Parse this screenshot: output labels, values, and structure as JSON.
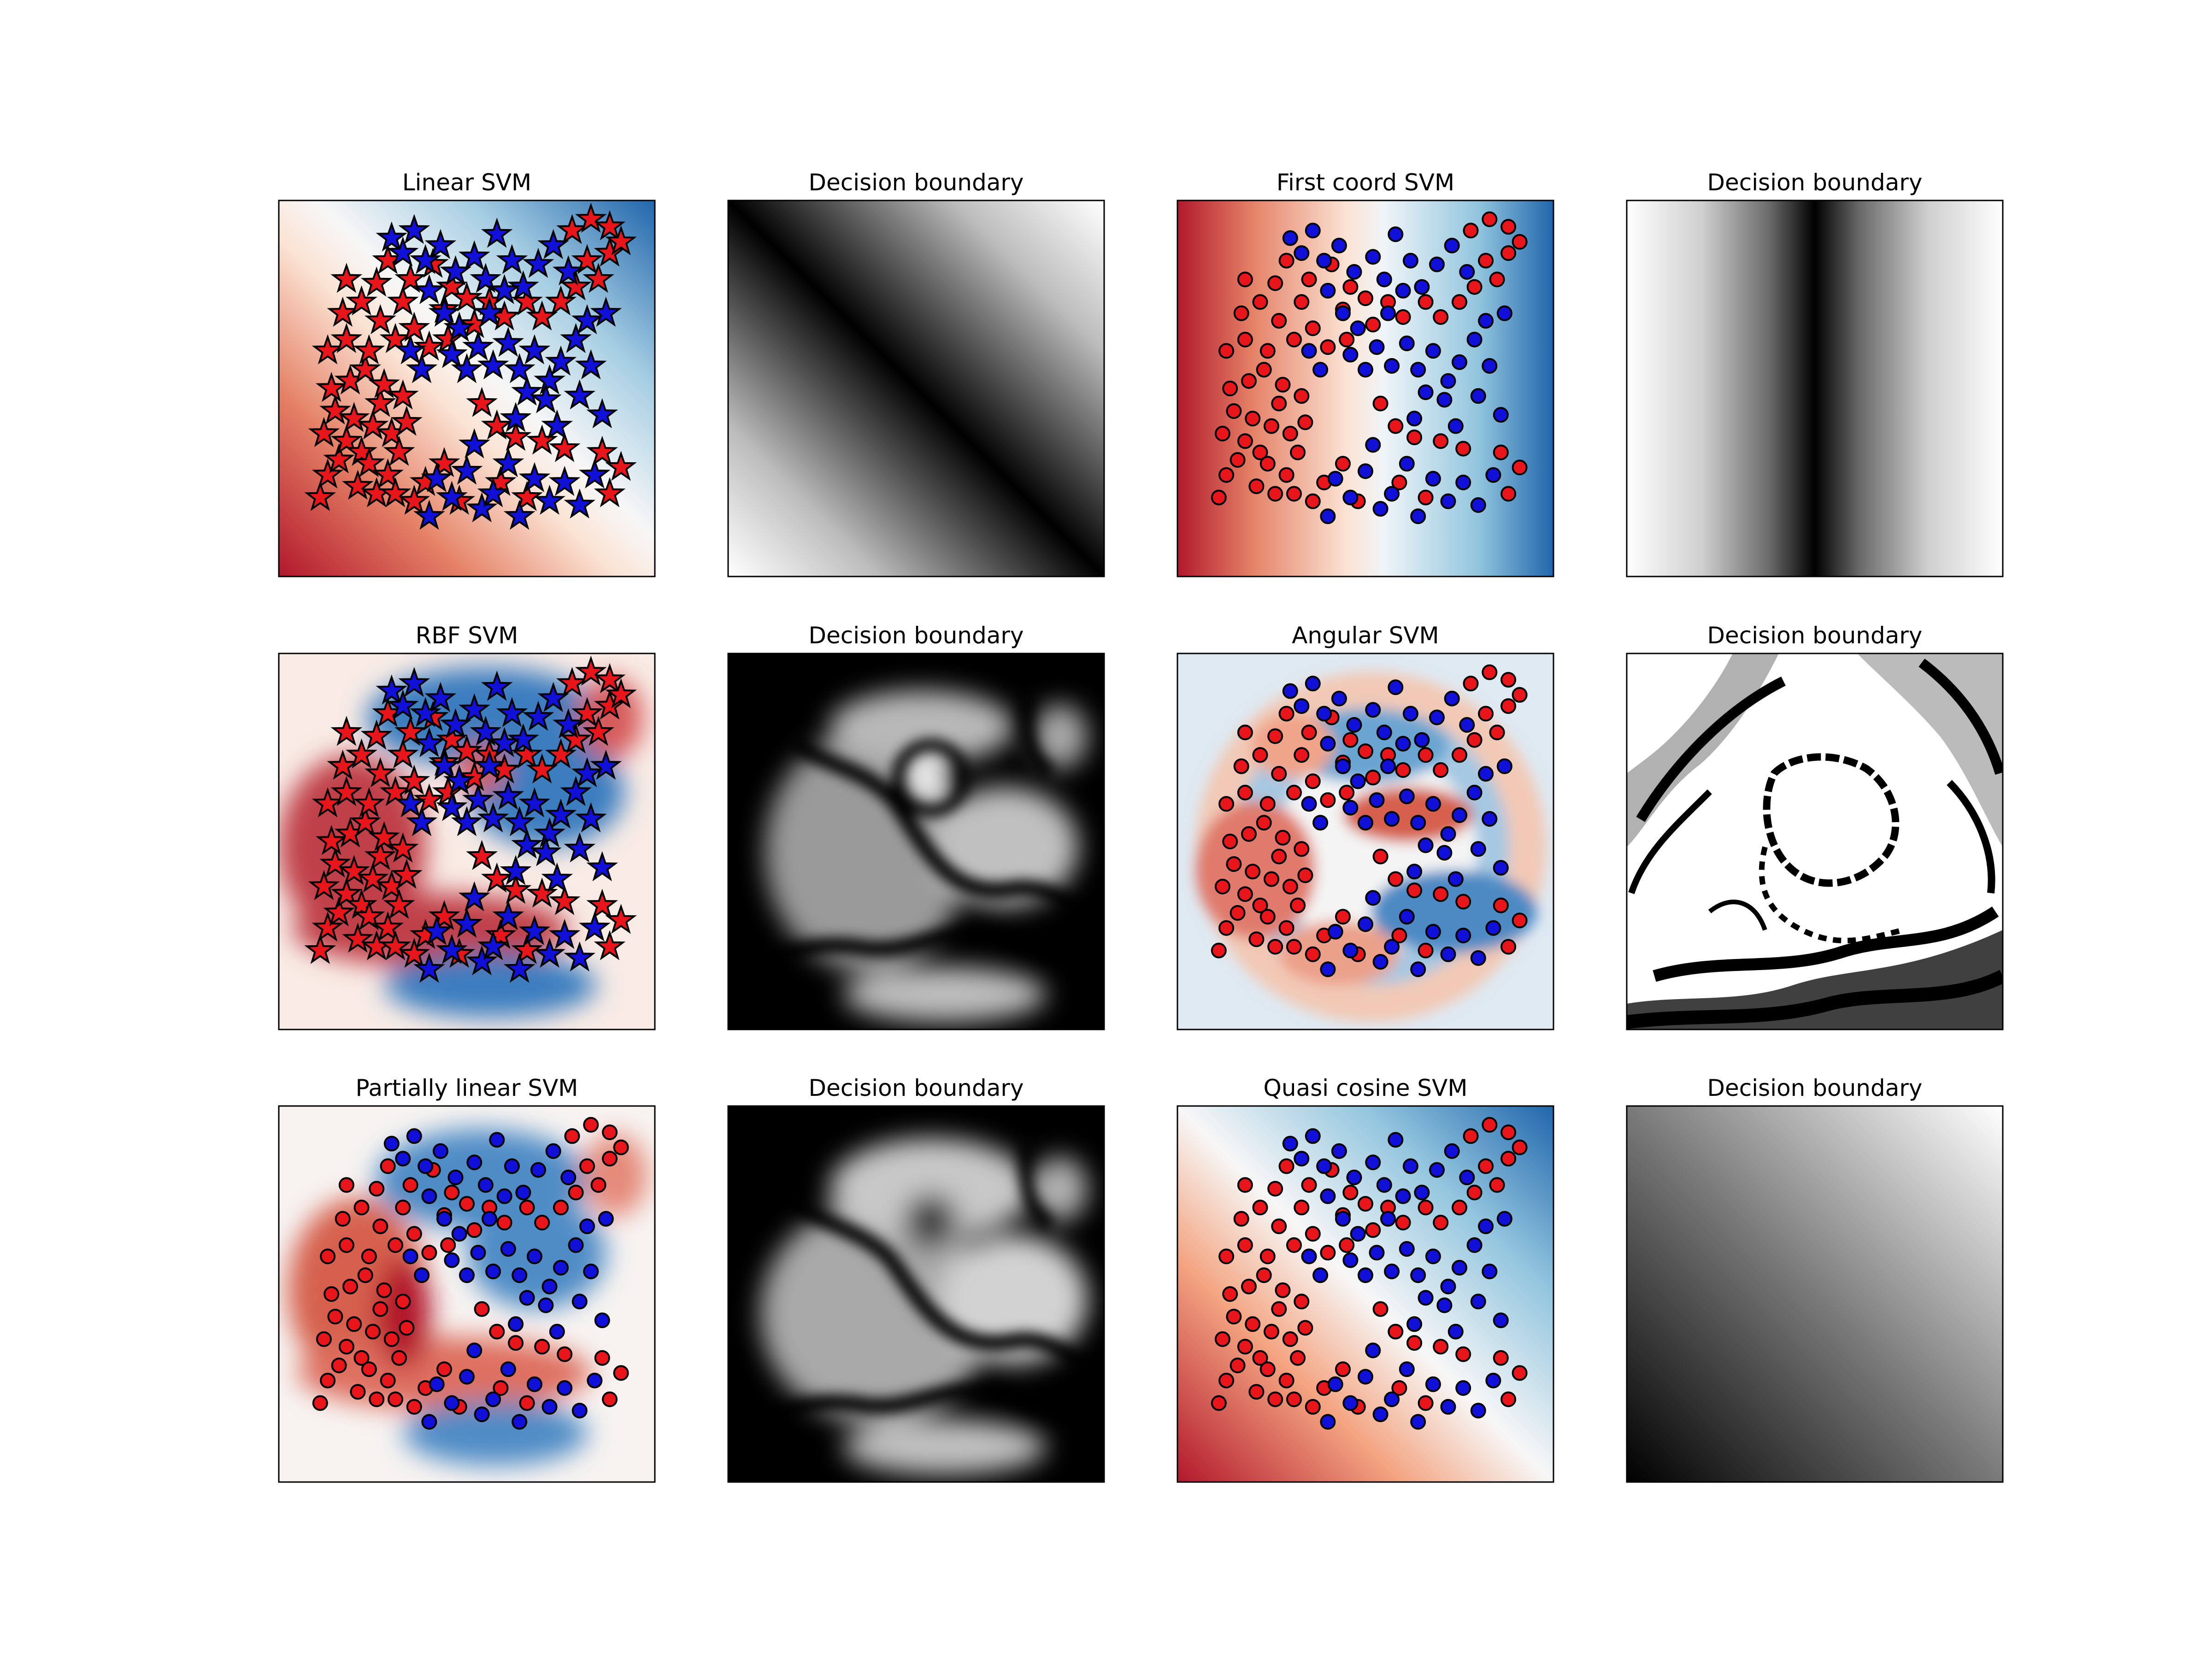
{
  "figure": {
    "background": "#ffffff"
  },
  "colors": {
    "red_class": "#e8161a",
    "blue_class": "#1010d8",
    "marker_edge": "#000000",
    "cmap_diverging": "RdBu",
    "cmap_gray": "gray"
  },
  "chart_data": [
    {
      "type": "scatter",
      "panel": "linear-svm",
      "title": "Linear SVM",
      "marker": "star",
      "background": "decision-function-RdBu",
      "grid": false,
      "axes_ticks": false
    },
    {
      "type": "heatmap",
      "panel": "linear-boundary",
      "title": "Decision boundary",
      "colormap": "gray",
      "grid": false,
      "axes_ticks": false
    },
    {
      "type": "scatter",
      "panel": "first-coord-svm",
      "title": "First coord SVM",
      "marker": "circle",
      "background": "decision-function-RdBu",
      "grid": false,
      "axes_ticks": false
    },
    {
      "type": "heatmap",
      "panel": "first-coord-boundary",
      "title": "Decision boundary",
      "colormap": "gray",
      "grid": false,
      "axes_ticks": false
    },
    {
      "type": "scatter",
      "panel": "rbf-svm",
      "title": "RBF SVM",
      "marker": "star",
      "background": "decision-function-RdBu",
      "grid": false,
      "axes_ticks": false
    },
    {
      "type": "heatmap",
      "panel": "rbf-boundary",
      "title": "Decision boundary",
      "colormap": "gray",
      "grid": false,
      "axes_ticks": false
    },
    {
      "type": "scatter",
      "panel": "angular-svm",
      "title": "Angular SVM",
      "marker": "circle",
      "background": "decision-function-RdBu",
      "grid": false,
      "axes_ticks": false
    },
    {
      "type": "heatmap",
      "panel": "angular-boundary",
      "title": "Decision boundary",
      "colormap": "gray",
      "grid": false,
      "axes_ticks": false
    },
    {
      "type": "scatter",
      "panel": "partially-linear-svm",
      "title": "Partially linear SVM",
      "marker": "circle",
      "background": "decision-function-RdBu",
      "grid": false,
      "axes_ticks": false
    },
    {
      "type": "heatmap",
      "panel": "partially-linear-boundary",
      "title": "Decision boundary",
      "colormap": "gray",
      "grid": false,
      "axes_ticks": false
    },
    {
      "type": "scatter",
      "panel": "quasi-cosine-svm",
      "title": "Quasi cosine SVM",
      "marker": "circle",
      "background": "decision-function-RdBu",
      "grid": false,
      "axes_ticks": false
    },
    {
      "type": "heatmap",
      "panel": "quasi-cosine-boundary",
      "title": "Decision boundary",
      "colormap": "gray",
      "grid": false,
      "axes_ticks": false
    }
  ],
  "points": {
    "red": [
      [
        0.11,
        0.21
      ],
      [
        0.13,
        0.27
      ],
      [
        0.16,
        0.31
      ],
      [
        0.12,
        0.38
      ],
      [
        0.18,
        0.36
      ],
      [
        0.22,
        0.33
      ],
      [
        0.15,
        0.44
      ],
      [
        0.2,
        0.42
      ],
      [
        0.25,
        0.4
      ],
      [
        0.27,
        0.46
      ],
      [
        0.3,
        0.38
      ],
      [
        0.24,
        0.3
      ],
      [
        0.29,
        0.27
      ],
      [
        0.32,
        0.33
      ],
      [
        0.34,
        0.41
      ],
      [
        0.21,
        0.24
      ],
      [
        0.26,
        0.22
      ],
      [
        0.31,
        0.22
      ],
      [
        0.36,
        0.2
      ],
      [
        0.39,
        0.25
      ],
      [
        0.14,
        0.5
      ],
      [
        0.19,
        0.52
      ],
      [
        0.23,
        0.55
      ],
      [
        0.28,
        0.51
      ],
      [
        0.33,
        0.48
      ],
      [
        0.13,
        0.6
      ],
      [
        0.18,
        0.63
      ],
      [
        0.24,
        0.6
      ],
      [
        0.17,
        0.7
      ],
      [
        0.22,
        0.73
      ],
      [
        0.27,
        0.68
      ],
      [
        0.31,
        0.63
      ],
      [
        0.36,
        0.66
      ],
      [
        0.4,
        0.61
      ],
      [
        0.44,
        0.71
      ],
      [
        0.33,
        0.73
      ],
      [
        0.26,
        0.78
      ],
      [
        0.18,
        0.79
      ],
      [
        0.29,
        0.84
      ],
      [
        0.35,
        0.79
      ],
      [
        0.41,
        0.83
      ],
      [
        0.46,
        0.77
      ],
      [
        0.5,
        0.74
      ],
      [
        0.45,
        0.63
      ],
      [
        0.52,
        0.67
      ],
      [
        0.56,
        0.73
      ],
      [
        0.6,
        0.69
      ],
      [
        0.66,
        0.73
      ],
      [
        0.7,
        0.69
      ],
      [
        0.75,
        0.73
      ],
      [
        0.79,
        0.77
      ],
      [
        0.82,
        0.84
      ],
      [
        0.85,
        0.79
      ],
      [
        0.88,
        0.86
      ],
      [
        0.78,
        0.92
      ],
      [
        0.83,
        0.95
      ],
      [
        0.88,
        0.93
      ],
      [
        0.91,
        0.89
      ],
      [
        0.54,
        0.46
      ],
      [
        0.58,
        0.4
      ],
      [
        0.63,
        0.37
      ],
      [
        0.7,
        0.36
      ],
      [
        0.76,
        0.34
      ],
      [
        0.86,
        0.33
      ],
      [
        0.91,
        0.29
      ],
      [
        0.88,
        0.22
      ],
      [
        0.59,
        0.25
      ],
      [
        0.66,
        0.21
      ],
      [
        0.48,
        0.2
      ],
      [
        0.44,
        0.3
      ]
    ],
    "blue": [
      [
        0.3,
        0.9
      ],
      [
        0.33,
        0.86
      ],
      [
        0.36,
        0.92
      ],
      [
        0.39,
        0.84
      ],
      [
        0.43,
        0.88
      ],
      [
        0.47,
        0.81
      ],
      [
        0.52,
        0.85
      ],
      [
        0.55,
        0.79
      ],
      [
        0.58,
        0.91
      ],
      [
        0.62,
        0.84
      ],
      [
        0.65,
        0.77
      ],
      [
        0.69,
        0.83
      ],
      [
        0.73,
        0.88
      ],
      [
        0.77,
        0.81
      ],
      [
        0.4,
        0.76
      ],
      [
        0.44,
        0.7
      ],
      [
        0.48,
        0.66
      ],
      [
        0.53,
        0.61
      ],
      [
        0.57,
        0.56
      ],
      [
        0.61,
        0.62
      ],
      [
        0.64,
        0.55
      ],
      [
        0.68,
        0.6
      ],
      [
        0.72,
        0.52
      ],
      [
        0.75,
        0.57
      ],
      [
        0.79,
        0.63
      ],
      [
        0.83,
        0.56
      ],
      [
        0.87,
        0.7
      ],
      [
        0.5,
        0.55
      ],
      [
        0.46,
        0.59
      ],
      [
        0.66,
        0.49
      ],
      [
        0.71,
        0.47
      ],
      [
        0.8,
        0.48
      ],
      [
        0.42,
        0.26
      ],
      [
        0.46,
        0.21
      ],
      [
        0.5,
        0.28
      ],
      [
        0.54,
        0.18
      ],
      [
        0.57,
        0.22
      ],
      [
        0.61,
        0.3
      ],
      [
        0.64,
        0.16
      ],
      [
        0.68,
        0.26
      ],
      [
        0.72,
        0.2
      ],
      [
        0.76,
        0.25
      ],
      [
        0.8,
        0.19
      ],
      [
        0.84,
        0.27
      ],
      [
        0.4,
        0.16
      ],
      [
        0.52,
        0.35
      ],
      [
        0.63,
        0.42
      ],
      [
        0.74,
        0.4
      ],
      [
        0.86,
        0.43
      ],
      [
        0.35,
        0.6
      ],
      [
        0.38,
        0.55
      ],
      [
        0.56,
        0.7
      ],
      [
        0.6,
        0.76
      ],
      [
        0.82,
        0.68
      ]
    ]
  }
}
